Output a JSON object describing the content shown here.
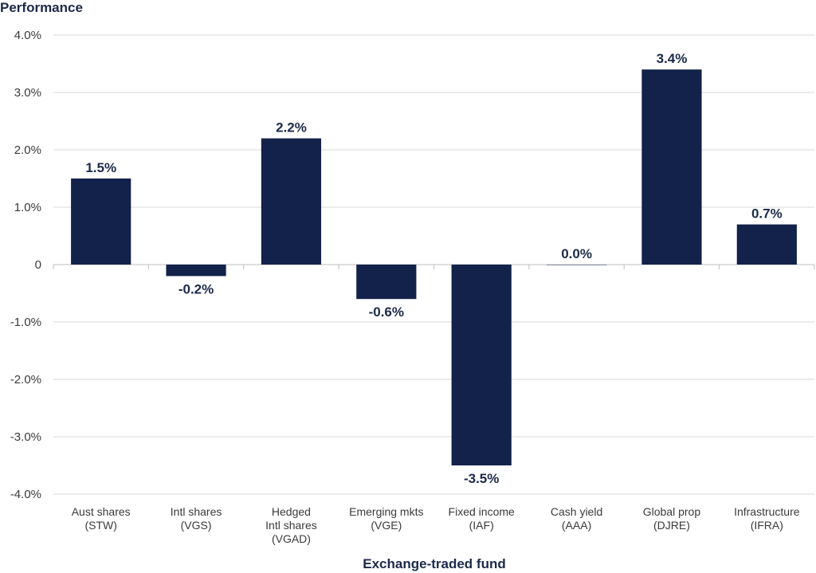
{
  "chart_data": {
    "type": "bar",
    "ylabel": "Performance",
    "xlabel": "Exchange-traded fund",
    "ylim": [
      -4.0,
      4.0
    ],
    "yticks": [
      4.0,
      3.0,
      2.0,
      1.0,
      0,
      -1.0,
      -2.0,
      -3.0,
      -4.0
    ],
    "ytick_labels": [
      "4.0%",
      "3.0%",
      "2.0%",
      "1.0%",
      "0",
      "-1.0%",
      "-2.0%",
      "-3.0%",
      "-4.0%"
    ],
    "categories": [
      [
        "Aust shares",
        "(STW)"
      ],
      [
        "Intl shares",
        "(VGS)"
      ],
      [
        "Hedged",
        "Intl shares",
        "(VGAD)"
      ],
      [
        "Emerging mkts",
        "(VGE)"
      ],
      [
        "Fixed income",
        "(IAF)"
      ],
      [
        "Cash yield",
        "(AAA)"
      ],
      [
        "Global prop",
        "(DJRE)"
      ],
      [
        "Infrastructure",
        "(IFRA)"
      ]
    ],
    "values": [
      1.5,
      -0.2,
      2.2,
      -0.6,
      -3.5,
      0.0,
      3.4,
      0.7
    ],
    "data_labels": [
      "1.5%",
      "-0.2%",
      "2.2%",
      "-0.6%",
      "-3.5%",
      "0.0%",
      "3.4%",
      "0.7%"
    ],
    "grid": true,
    "colors": {
      "bar": "#13224a",
      "grid": "#d9d9d9",
      "axis": "#bfbfbf"
    }
  }
}
